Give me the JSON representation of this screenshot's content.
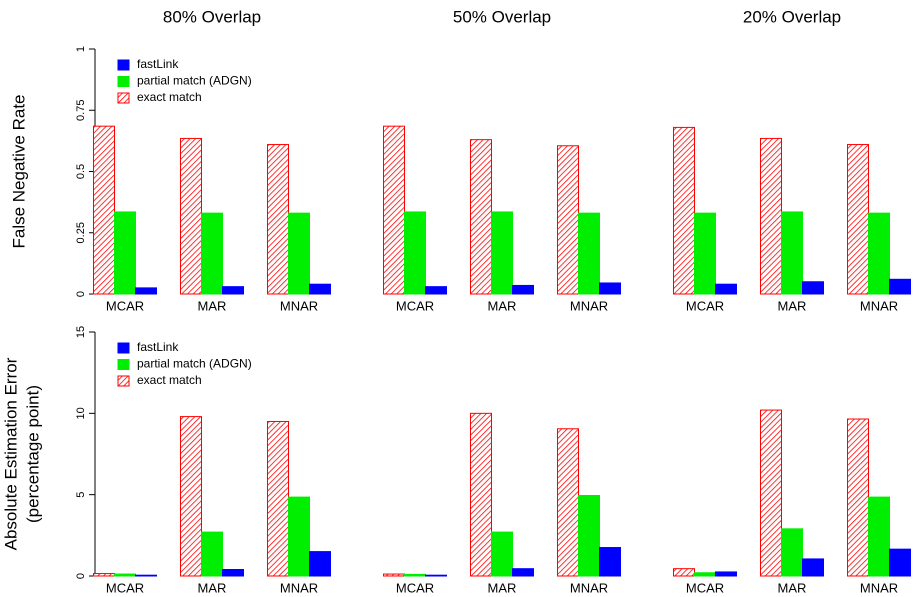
{
  "chart_data": [
    {
      "type": "bar",
      "title": "80% Overlap",
      "ylabel": [
        "False Negative Rate"
      ],
      "legend": "topleft",
      "categories": [
        "MCAR",
        "MAR",
        "MNAR"
      ],
      "ylim": [
        0,
        1
      ],
      "yticks": [
        0,
        0.25,
        0.5,
        0.75,
        1
      ],
      "series": [
        {
          "name": "exact match",
          "color": "#ff0000",
          "values": [
            0.685,
            0.635,
            0.61
          ]
        },
        {
          "name": "partial match (ADGN)",
          "color": "#00ee00",
          "values": [
            0.335,
            0.33,
            0.33
          ]
        },
        {
          "name": "fastLink",
          "color": "#0000ff",
          "values": [
            0.025,
            0.03,
            0.04
          ]
        }
      ]
    },
    {
      "type": "bar",
      "title": "50% Overlap",
      "categories": [
        "MCAR",
        "MAR",
        "MNAR"
      ],
      "ylim": [
        0,
        1
      ],
      "series": [
        {
          "color": "#ff0000",
          "values": [
            0.685,
            0.63,
            0.605
          ]
        },
        {
          "color": "#00ee00",
          "values": [
            0.335,
            0.335,
            0.33
          ]
        },
        {
          "color": "#0000ff",
          "values": [
            0.03,
            0.035,
            0.045
          ]
        }
      ]
    },
    {
      "type": "bar",
      "title": "20% Overlap",
      "categories": [
        "MCAR",
        "MAR",
        "MNAR"
      ],
      "ylim": [
        0,
        1
      ],
      "series": [
        {
          "color": "#ff0000",
          "values": [
            0.68,
            0.635,
            0.61
          ]
        },
        {
          "color": "#00ee00",
          "values": [
            0.33,
            0.335,
            0.33
          ]
        },
        {
          "color": "#0000ff",
          "values": [
            0.04,
            0.05,
            0.06
          ]
        }
      ]
    },
    {
      "type": "bar",
      "ylabel": [
        "Absolute Estimation Error",
        "(percentage point)"
      ],
      "legend": "topleft",
      "categories": [
        "MCAR",
        "MAR",
        "MNAR"
      ],
      "ylim": [
        0,
        15
      ],
      "yticks": [
        0,
        5,
        10,
        15
      ],
      "series": [
        {
          "name": "exact match",
          "color": "#ff0000",
          "values": [
            0.15,
            9.8,
            9.5
          ]
        },
        {
          "name": "partial match (ADGN)",
          "color": "#00ee00",
          "values": [
            0.12,
            2.7,
            4.85
          ]
        },
        {
          "name": "fastLink",
          "color": "#0000ff",
          "values": [
            0.05,
            0.4,
            1.5
          ]
        }
      ]
    },
    {
      "type": "bar",
      "categories": [
        "MCAR",
        "MAR",
        "MNAR"
      ],
      "ylim": [
        0,
        15
      ],
      "series": [
        {
          "color": "#ff0000",
          "values": [
            0.12,
            10.0,
            9.05
          ]
        },
        {
          "color": "#00ee00",
          "values": [
            0.1,
            2.7,
            4.95
          ]
        },
        {
          "color": "#0000ff",
          "values": [
            0.05,
            0.45,
            1.75
          ]
        }
      ]
    },
    {
      "type": "bar",
      "categories": [
        "MCAR",
        "MAR",
        "MNAR"
      ],
      "ylim": [
        0,
        15
      ],
      "series": [
        {
          "color": "#ff0000",
          "values": [
            0.45,
            10.2,
            9.65
          ]
        },
        {
          "color": "#00ee00",
          "values": [
            0.2,
            2.9,
            4.85
          ]
        },
        {
          "color": "#0000ff",
          "values": [
            0.25,
            1.05,
            1.65
          ]
        }
      ]
    }
  ]
}
